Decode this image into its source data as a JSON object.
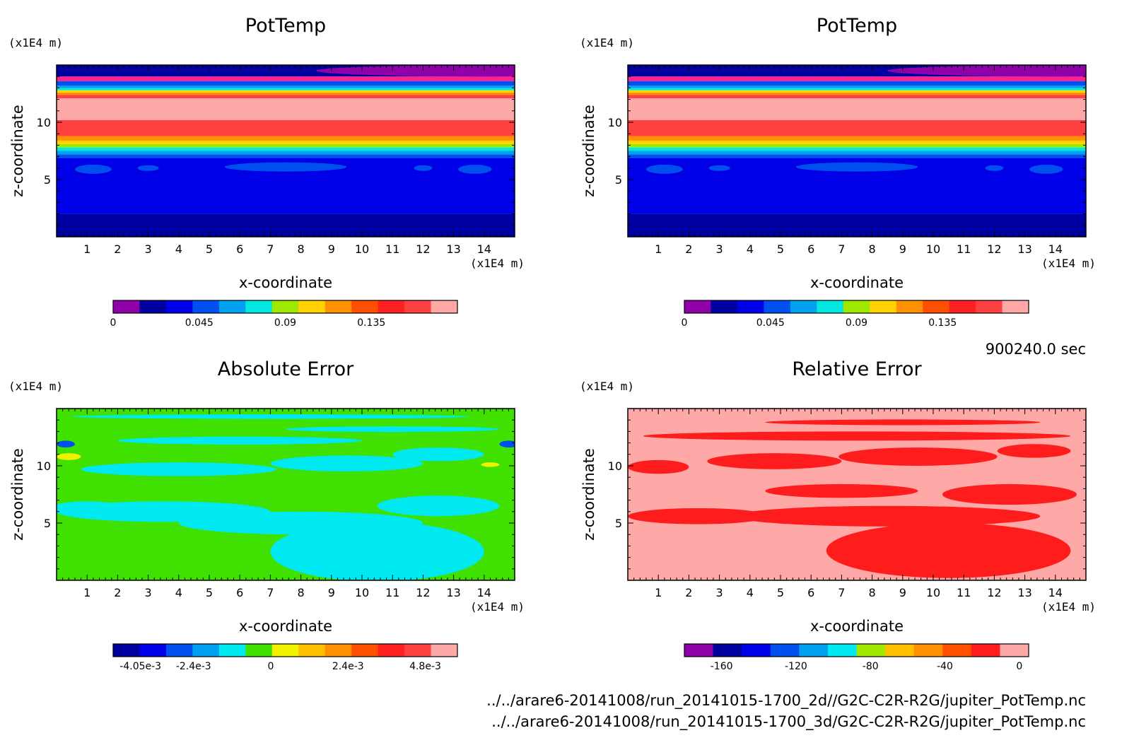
{
  "footer": {
    "time": "900240.0 sec",
    "file_2d": "../../arare6-20141008/run_20141015-1700_2d//G2C-C2R-R2G/jupiter_PotTemp.nc",
    "file_3d": "../../arare6-20141008/run_20141015-1700_3d/G2C-C2R-R2G/jupiter_PotTemp.nc"
  },
  "chart_data": [
    {
      "type": "heatmap",
      "title": "PotTemp",
      "xlabel": "x-coordinate",
      "ylabel": "z-coordinate",
      "x_unit": "(x1E4 m)",
      "y_unit": "(x1E4 m)",
      "xlim": [
        0,
        15
      ],
      "ylim": [
        0,
        15
      ],
      "x_ticks": [
        "1",
        "2",
        "3",
        "4",
        "5",
        "6",
        "7",
        "8",
        "9",
        "10",
        "11",
        "12",
        "13",
        "14"
      ],
      "y_ticks": [
        "5",
        "10"
      ],
      "colorbar": {
        "colors": [
          "#9000a8",
          "#0000a0",
          "#0000e8",
          "#0050f0",
          "#00a0f0",
          "#00e8e0",
          "#a0e800",
          "#ffd200",
          "#ff9000",
          "#ff5000",
          "#ff2020",
          "#ff4040",
          "#ffa8a8"
        ],
        "labels": [
          "0",
          "0.045",
          "0.09",
          "0.135"
        ],
        "label_values": [
          0,
          0.045,
          0.09,
          0.135
        ],
        "range": [
          0,
          0.18
        ]
      },
      "bands": [
        {
          "z_from": 0.0,
          "z_to": 2.0,
          "color": "#0000a0"
        },
        {
          "z_from": 2.0,
          "z_to": 6.9,
          "color": "#0000e8"
        },
        {
          "z_from": 6.9,
          "z_to": 7.2,
          "color": "#0050f0"
        },
        {
          "z_from": 7.2,
          "z_to": 7.5,
          "color": "#00a0f0"
        },
        {
          "z_from": 7.5,
          "z_to": 7.8,
          "color": "#00e8e0"
        },
        {
          "z_from": 7.8,
          "z_to": 8.1,
          "color": "#a0e800"
        },
        {
          "z_from": 8.1,
          "z_to": 8.4,
          "color": "#ffd200"
        },
        {
          "z_from": 8.4,
          "z_to": 8.8,
          "color": "#ff9000"
        },
        {
          "z_from": 8.8,
          "z_to": 10.2,
          "color": "#ff4040"
        },
        {
          "z_from": 10.2,
          "z_to": 12.1,
          "color": "#ffa8a8"
        },
        {
          "z_from": 12.1,
          "z_to": 12.4,
          "color": "#ff4040"
        },
        {
          "z_from": 12.4,
          "z_to": 12.6,
          "color": "#ff9000"
        },
        {
          "z_from": 12.6,
          "z_to": 12.8,
          "color": "#ffd200"
        },
        {
          "z_from": 12.8,
          "z_to": 13.0,
          "color": "#00e8e0"
        },
        {
          "z_from": 13.0,
          "z_to": 13.2,
          "color": "#00a0f0"
        },
        {
          "z_from": 13.2,
          "z_to": 13.6,
          "color": "#0050f0"
        },
        {
          "z_from": 13.6,
          "z_to": 14.0,
          "color": "#ff2090"
        },
        {
          "z_from": 14.0,
          "z_to": 15.0,
          "color": "#0000a0"
        }
      ],
      "blobs": [
        {
          "x": 14.0,
          "z": 14.5,
          "rx": 5.5,
          "rz": 0.5,
          "color": "#9000a8"
        },
        {
          "x": 1.2,
          "z": 5.9,
          "rx": 0.6,
          "rz": 0.4,
          "color": "#0050f0"
        },
        {
          "x": 3.0,
          "z": 6.0,
          "rx": 0.35,
          "rz": 0.25,
          "color": "#0050f0"
        },
        {
          "x": 7.5,
          "z": 6.1,
          "rx": 2.0,
          "rz": 0.4,
          "color": "#0050f0"
        },
        {
          "x": 12.0,
          "z": 6.0,
          "rx": 0.3,
          "rz": 0.25,
          "color": "#0050f0"
        },
        {
          "x": 13.7,
          "z": 5.9,
          "rx": 0.55,
          "rz": 0.4,
          "color": "#0050f0"
        }
      ]
    },
    {
      "type": "heatmap",
      "title": "PotTemp",
      "xlabel": "x-coordinate",
      "ylabel": "z-coordinate",
      "x_unit": "(x1E4 m)",
      "y_unit": "(x1E4 m)",
      "xlim": [
        0,
        15
      ],
      "ylim": [
        0,
        15
      ],
      "x_ticks": [
        "1",
        "2",
        "3",
        "4",
        "5",
        "6",
        "7",
        "8",
        "9",
        "10",
        "11",
        "12",
        "13",
        "14"
      ],
      "y_ticks": [
        "5",
        "10"
      ],
      "colorbar": {
        "colors": [
          "#9000a8",
          "#0000a0",
          "#0000e8",
          "#0050f0",
          "#00a0f0",
          "#00e8e0",
          "#a0e800",
          "#ffd200",
          "#ff9000",
          "#ff5000",
          "#ff2020",
          "#ff4040",
          "#ffa8a8"
        ],
        "labels": [
          "0",
          "0.045",
          "0.09",
          "0.135"
        ],
        "label_values": [
          0,
          0.045,
          0.09,
          0.135
        ],
        "range": [
          0,
          0.18
        ]
      },
      "bands": [
        {
          "z_from": 0.0,
          "z_to": 2.0,
          "color": "#0000a0"
        },
        {
          "z_from": 2.0,
          "z_to": 6.9,
          "color": "#0000e8"
        },
        {
          "z_from": 6.9,
          "z_to": 7.2,
          "color": "#0050f0"
        },
        {
          "z_from": 7.2,
          "z_to": 7.5,
          "color": "#00a0f0"
        },
        {
          "z_from": 7.5,
          "z_to": 7.8,
          "color": "#00e8e0"
        },
        {
          "z_from": 7.8,
          "z_to": 8.1,
          "color": "#a0e800"
        },
        {
          "z_from": 8.1,
          "z_to": 8.4,
          "color": "#ffd200"
        },
        {
          "z_from": 8.4,
          "z_to": 8.8,
          "color": "#ff9000"
        },
        {
          "z_from": 8.8,
          "z_to": 10.2,
          "color": "#ff4040"
        },
        {
          "z_from": 10.2,
          "z_to": 12.1,
          "color": "#ffa8a8"
        },
        {
          "z_from": 12.1,
          "z_to": 12.4,
          "color": "#ff4040"
        },
        {
          "z_from": 12.4,
          "z_to": 12.6,
          "color": "#ff9000"
        },
        {
          "z_from": 12.6,
          "z_to": 12.8,
          "color": "#ffd200"
        },
        {
          "z_from": 12.8,
          "z_to": 13.0,
          "color": "#00e8e0"
        },
        {
          "z_from": 13.0,
          "z_to": 13.2,
          "color": "#00a0f0"
        },
        {
          "z_from": 13.2,
          "z_to": 13.6,
          "color": "#0050f0"
        },
        {
          "z_from": 13.6,
          "z_to": 14.0,
          "color": "#ff2090"
        },
        {
          "z_from": 14.0,
          "z_to": 15.0,
          "color": "#0000a0"
        }
      ],
      "blobs": [
        {
          "x": 14.0,
          "z": 14.5,
          "rx": 5.5,
          "rz": 0.5,
          "color": "#9000a8"
        },
        {
          "x": 1.2,
          "z": 5.9,
          "rx": 0.6,
          "rz": 0.4,
          "color": "#0050f0"
        },
        {
          "x": 3.0,
          "z": 6.0,
          "rx": 0.35,
          "rz": 0.25,
          "color": "#0050f0"
        },
        {
          "x": 7.5,
          "z": 6.1,
          "rx": 2.0,
          "rz": 0.4,
          "color": "#0050f0"
        },
        {
          "x": 12.0,
          "z": 6.0,
          "rx": 0.3,
          "rz": 0.25,
          "color": "#0050f0"
        },
        {
          "x": 13.7,
          "z": 5.9,
          "rx": 0.55,
          "rz": 0.4,
          "color": "#0050f0"
        }
      ]
    },
    {
      "type": "heatmap",
      "title": "Absolute Error",
      "xlabel": "x-coordinate",
      "ylabel": "z-coordinate",
      "x_unit": "(x1E4 m)",
      "y_unit": "(x1E4 m)",
      "xlim": [
        0,
        15
      ],
      "ylim": [
        0,
        15
      ],
      "x_ticks": [
        "1",
        "2",
        "3",
        "4",
        "5",
        "6",
        "7",
        "8",
        "9",
        "10",
        "11",
        "12",
        "13",
        "14"
      ],
      "y_ticks": [
        "5",
        "10"
      ],
      "colorbar": {
        "colors": [
          "#0000a0",
          "#0000e8",
          "#0050f0",
          "#00a0f0",
          "#00e8f0",
          "#40e000",
          "#f0f000",
          "#ffc000",
          "#ff9000",
          "#ff5000",
          "#ff2020",
          "#ff4040",
          "#ffa8a8"
        ],
        "labels": [
          "-4.05e-3",
          "-2.4e-3",
          "0",
          "2.4e-3",
          "4.8e-3"
        ],
        "label_values": [
          -0.00405,
          -0.0024,
          0,
          0.0024,
          0.0048
        ],
        "range": [
          -0.0049,
          0.0058
        ]
      },
      "bands": [
        {
          "z_from": 0.0,
          "z_to": 15.0,
          "color": "#40e000"
        }
      ],
      "blobs": [
        {
          "x": 10.5,
          "z": 2.5,
          "rx": 3.5,
          "rz": 2.6,
          "color": "#00e8f0"
        },
        {
          "x": 8.0,
          "z": 5.0,
          "rx": 4.0,
          "rz": 1.0,
          "color": "#00e8f0"
        },
        {
          "x": 3.5,
          "z": 6.0,
          "rx": 3.5,
          "rz": 0.9,
          "color": "#00e8f0"
        },
        {
          "x": 1.0,
          "z": 6.3,
          "rx": 1.2,
          "rz": 0.6,
          "color": "#00e8f0"
        },
        {
          "x": 12.5,
          "z": 6.5,
          "rx": 2.0,
          "rz": 0.9,
          "color": "#00e8f0"
        },
        {
          "x": 4.0,
          "z": 9.7,
          "rx": 3.2,
          "rz": 0.6,
          "color": "#00e8f0"
        },
        {
          "x": 9.5,
          "z": 10.2,
          "rx": 2.5,
          "rz": 0.7,
          "color": "#00e8f0"
        },
        {
          "x": 12.5,
          "z": 11.0,
          "rx": 1.5,
          "rz": 0.6,
          "color": "#00e8f0"
        },
        {
          "x": 6.0,
          "z": 12.2,
          "rx": 4.0,
          "rz": 0.35,
          "color": "#00e8f0"
        },
        {
          "x": 11.0,
          "z": 13.2,
          "rx": 3.5,
          "rz": 0.25,
          "color": "#00e8f0"
        },
        {
          "x": 7.0,
          "z": 14.3,
          "rx": 6.5,
          "rz": 0.2,
          "color": "#00e8f0"
        },
        {
          "x": 0.4,
          "z": 10.8,
          "rx": 0.4,
          "rz": 0.3,
          "color": "#f0f000"
        },
        {
          "x": 14.2,
          "z": 10.1,
          "rx": 0.3,
          "rz": 0.2,
          "color": "#f0f000"
        },
        {
          "x": 0.3,
          "z": 11.9,
          "rx": 0.3,
          "rz": 0.3,
          "color": "#0050f0"
        },
        {
          "x": 14.8,
          "z": 11.9,
          "rx": 0.3,
          "rz": 0.3,
          "color": "#0050f0"
        }
      ]
    },
    {
      "type": "heatmap",
      "title": "Relative Error",
      "xlabel": "x-coordinate",
      "ylabel": "z-coordinate",
      "x_unit": "(x1E4 m)",
      "y_unit": "(x1E4 m)",
      "xlim": [
        0,
        15
      ],
      "ylim": [
        0,
        15
      ],
      "x_ticks": [
        "1",
        "2",
        "3",
        "4",
        "5",
        "6",
        "7",
        "8",
        "9",
        "10",
        "11",
        "12",
        "13",
        "14"
      ],
      "y_ticks": [
        "5",
        "10"
      ],
      "colorbar": {
        "colors": [
          "#9000a8",
          "#0000a0",
          "#0000e8",
          "#0050f0",
          "#00a0f0",
          "#00e8f0",
          "#a0e800",
          "#ffc000",
          "#ff9000",
          "#ff5000",
          "#ff1c1c",
          "#ffa8a8"
        ],
        "labels": [
          "-160",
          "-120",
          "-80",
          "-40",
          "0"
        ],
        "label_values": [
          -160,
          -120,
          -80,
          -40,
          0
        ],
        "range": [
          -180,
          5
        ]
      },
      "bands": [
        {
          "z_from": 0.0,
          "z_to": 15.0,
          "color": "#ffa8a8"
        }
      ],
      "blobs": [
        {
          "x": 10.5,
          "z": 2.6,
          "rx": 4.0,
          "rz": 2.4,
          "color": "#ff1c1c"
        },
        {
          "x": 8.5,
          "z": 5.6,
          "rx": 5.0,
          "rz": 0.9,
          "color": "#ff1c1c"
        },
        {
          "x": 2.3,
          "z": 5.6,
          "rx": 2.3,
          "rz": 0.7,
          "color": "#ff1c1c"
        },
        {
          "x": 12.5,
          "z": 7.5,
          "rx": 2.2,
          "rz": 0.9,
          "color": "#ff1c1c"
        },
        {
          "x": 7.0,
          "z": 7.8,
          "rx": 2.5,
          "rz": 0.6,
          "color": "#ff1c1c"
        },
        {
          "x": 1.0,
          "z": 9.9,
          "rx": 1.0,
          "rz": 0.6,
          "color": "#ff1c1c"
        },
        {
          "x": 4.8,
          "z": 10.4,
          "rx": 2.2,
          "rz": 0.7,
          "color": "#ff1c1c"
        },
        {
          "x": 9.5,
          "z": 10.8,
          "rx": 2.6,
          "rz": 0.8,
          "color": "#ff1c1c"
        },
        {
          "x": 13.3,
          "z": 11.3,
          "rx": 1.2,
          "rz": 0.6,
          "color": "#ff1c1c"
        },
        {
          "x": 7.5,
          "z": 12.6,
          "rx": 7.0,
          "rz": 0.4,
          "color": "#ff1c1c"
        },
        {
          "x": 9.0,
          "z": 13.8,
          "rx": 4.5,
          "rz": 0.25,
          "color": "#ff1c1c"
        }
      ]
    }
  ]
}
